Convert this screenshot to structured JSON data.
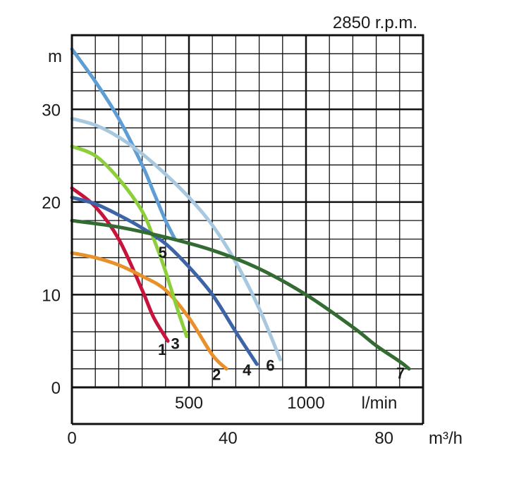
{
  "chart_data": {
    "type": "line",
    "title": "2850 r.p.m.",
    "ylabel": "m",
    "xlabel_flow_lmin": "l/min",
    "xlabel_flow_m3h": "m³/h",
    "ylim": [
      0,
      38
    ],
    "xlim_lmin": [
      0,
      1500
    ],
    "grid": true,
    "y_ticks": [
      "0",
      "10",
      "20",
      "30"
    ],
    "y_tick_values": [
      0,
      10,
      20,
      30
    ],
    "lmin_ticks": [
      "500",
      "1000"
    ],
    "lmin_tick_values": [
      500,
      1000
    ],
    "m3h_ticks": [
      "0",
      "40",
      "80"
    ],
    "m3h_tick_values": [
      0,
      40,
      80
    ],
    "series": [
      {
        "name": "1",
        "color": "#c8143c",
        "x": [
          0,
          100,
          200,
          300,
          350,
          410
        ],
        "y": [
          21.5,
          19.5,
          16,
          10.5,
          7.5,
          5
        ]
      },
      {
        "name": "2",
        "color": "#e8902a",
        "x": [
          0,
          100,
          200,
          300,
          400,
          500,
          600,
          660
        ],
        "y": [
          14.5,
          14,
          13.2,
          12,
          10.5,
          7.5,
          3.5,
          2
        ]
      },
      {
        "name": "3",
        "color": "#8ccf3a",
        "x": [
          0,
          100,
          200,
          300,
          350,
          400,
          450,
          490
        ],
        "y": [
          26,
          25,
          22.5,
          19,
          16,
          12.5,
          8.5,
          5.5
        ]
      },
      {
        "name": "4",
        "color": "#3e64a8",
        "x": [
          0,
          100,
          200,
          300,
          400,
          500,
          600,
          700,
          790
        ],
        "y": [
          20.5,
          19.8,
          18.6,
          17.2,
          15.5,
          13,
          10,
          6,
          2.5
        ]
      },
      {
        "name": "5",
        "color": "#5e9ed4",
        "x": [
          0,
          100,
          200,
          300,
          350,
          400,
          440
        ],
        "y": [
          36.5,
          33,
          29,
          24,
          21,
          18,
          16
        ]
      },
      {
        "name": "6",
        "color": "#a8c8e0",
        "x": [
          0,
          100,
          200,
          300,
          400,
          500,
          600,
          700,
          800,
          890
        ],
        "y": [
          29,
          28.3,
          27,
          25.2,
          23,
          20.5,
          17.5,
          13.5,
          8.5,
          3
        ]
      },
      {
        "name": "7",
        "color": "#336b32",
        "x": [
          0,
          200,
          400,
          600,
          800,
          1000,
          1200,
          1300,
          1400,
          1440
        ],
        "y": [
          18,
          17.3,
          16.2,
          14.8,
          12.8,
          10,
          6.5,
          4.5,
          2.8,
          2
        ]
      }
    ]
  }
}
